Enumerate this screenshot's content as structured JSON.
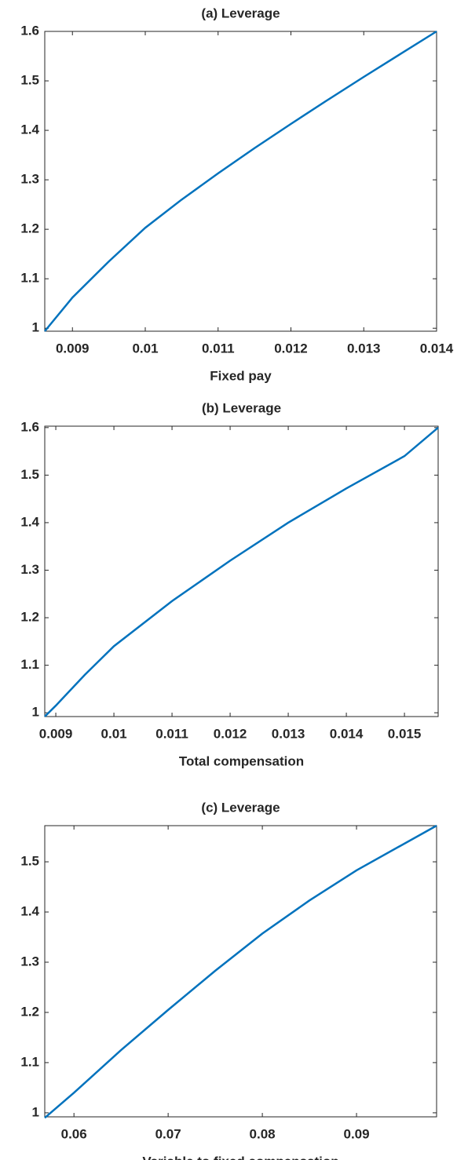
{
  "chart_data": [
    {
      "type": "line",
      "title": "(a) Leverage",
      "x_label": "Fixed pay",
      "x": [
        0.00862,
        0.009,
        0.0095,
        0.01,
        0.0105,
        0.011,
        0.0115,
        0.012,
        0.0125,
        0.013,
        0.0135,
        0.014
      ],
      "series": [
        {
          "name": "Leverage",
          "color": "#0072bd",
          "values": [
            0.994,
            1.062,
            1.135,
            1.203,
            1.26,
            1.313,
            1.364,
            1.413,
            1.461,
            1.508,
            1.554,
            1.6
          ]
        }
      ],
      "xlim": [
        0.00862,
        0.014
      ],
      "ylim": [
        0.994,
        1.6
      ],
      "xticks": [
        0.009,
        0.01,
        0.011,
        0.012,
        0.013,
        0.014
      ],
      "yticks": [
        1,
        1.1,
        1.2,
        1.3,
        1.4,
        1.5,
        1.6
      ]
    },
    {
      "type": "line",
      "title": "(b) Leverage",
      "x_label": "Total compensation",
      "x": [
        0.00881,
        0.009,
        0.0095,
        0.01,
        0.011,
        0.012,
        0.013,
        0.014,
        0.015,
        0.01558
      ],
      "series": [
        {
          "name": "Leverage",
          "color": "#0072bd",
          "values": [
            0.992,
            1.015,
            1.08,
            1.14,
            1.235,
            1.32,
            1.4,
            1.472,
            1.54,
            1.6
          ]
        }
      ],
      "xlim": [
        0.00881,
        0.01558
      ],
      "ylim": [
        0.992,
        1.603
      ],
      "xticks": [
        0.009,
        0.01,
        0.011,
        0.012,
        0.013,
        0.014,
        0.015
      ],
      "yticks": [
        1,
        1.1,
        1.2,
        1.3,
        1.4,
        1.5,
        1.6
      ]
    },
    {
      "type": "line",
      "title": "(c) Leverage",
      "x_label": "Variable to fixed compensation",
      "x": [
        0.0569,
        0.06,
        0.065,
        0.07,
        0.075,
        0.08,
        0.085,
        0.09,
        0.0985
      ],
      "series": [
        {
          "name": "Leverage",
          "color": "#0072bd",
          "values": [
            0.99,
            1.04,
            1.125,
            1.205,
            1.283,
            1.357,
            1.423,
            1.483,
            1.572
          ]
        }
      ],
      "xlim": [
        0.0569,
        0.0985
      ],
      "ylim": [
        0.992,
        1.572
      ],
      "xticks": [
        0.06,
        0.07,
        0.08,
        0.09
      ],
      "yticks": [
        1,
        1.1,
        1.2,
        1.3,
        1.4,
        1.5
      ]
    }
  ]
}
